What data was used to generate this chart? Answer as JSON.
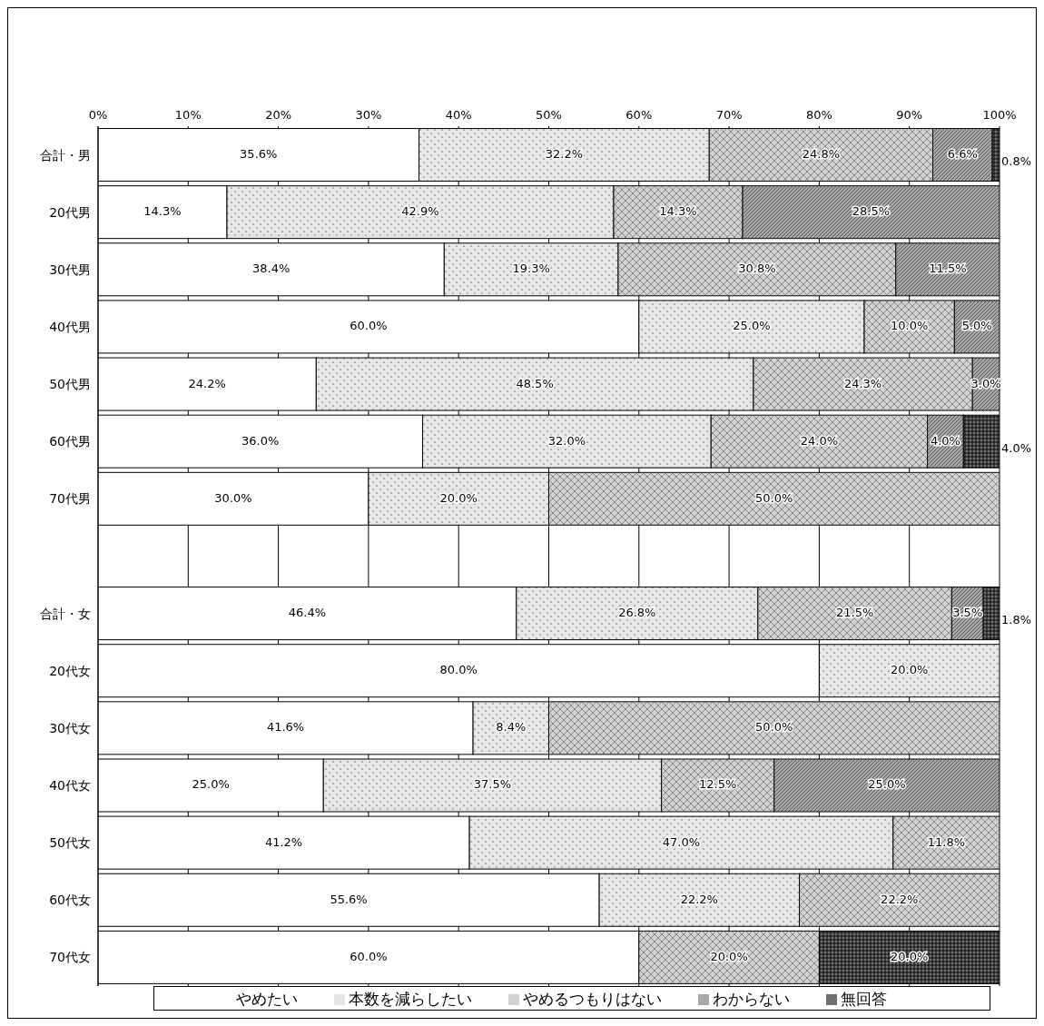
{
  "chart_data": {
    "type": "bar",
    "orientation": "horizontal",
    "stacked": true,
    "categories": [
      "合計・男",
      "20代男",
      "30代男",
      "40代男",
      "50代男",
      "60代男",
      "70代男",
      null,
      "合計・女",
      "20代女",
      "30代女",
      "40代女",
      "50代女",
      "60代女",
      "70代女"
    ],
    "series": [
      {
        "name": "やめたい",
        "color": "#ffffff",
        "values": [
          35.6,
          14.3,
          38.4,
          60.0,
          24.2,
          36.0,
          30.0,
          null,
          46.4,
          80.0,
          41.6,
          25.0,
          41.2,
          55.6,
          60.0
        ],
        "value_labels": [
          "35.6%",
          "14.3%",
          "38.4%",
          "60.0%",
          "24.2%",
          "36.0%",
          "30.0%",
          null,
          "46.4%",
          "80.0%",
          "41.6%",
          "25.0%",
          "41.2%",
          "55.6%",
          "60.0%"
        ]
      },
      {
        "name": "本数を減らしたい",
        "color": "#e6e6e6",
        "values": [
          32.2,
          42.9,
          19.3,
          25.0,
          48.5,
          32.0,
          20.0,
          null,
          26.8,
          20.0,
          8.4,
          37.5,
          47.0,
          22.2,
          null
        ],
        "value_labels": [
          "32.2%",
          "42.9%",
          "19.3%",
          "25.0%",
          "48.5%",
          "32.0%",
          "20.0%",
          null,
          "26.8%",
          "20.0%",
          "8.4%",
          "37.5%",
          "47.0%",
          "22.2%",
          null
        ]
      },
      {
        "name": "やめるつもりはない",
        "color": "#d2d2d2",
        "values": [
          24.8,
          14.3,
          30.8,
          10.0,
          24.3,
          24.0,
          50.0,
          null,
          21.5,
          null,
          50.0,
          12.5,
          11.8,
          22.2,
          20.0
        ],
        "value_labels": [
          "24.8%",
          "14.3%",
          "30.8%",
          "10.0%",
          "24.3%",
          "24.0%",
          "50.0%",
          null,
          "21.5%",
          null,
          "50.0%",
          "12.5%",
          "11.8%",
          "22.2%",
          "20.0%"
        ]
      },
      {
        "name": "わからない",
        "color": "#a8a8a8",
        "values": [
          6.6,
          28.5,
          11.5,
          5.0,
          3.0,
          4.0,
          null,
          null,
          3.5,
          null,
          null,
          25.0,
          null,
          null,
          null
        ],
        "value_labels": [
          "6.6%",
          "28.5%",
          "11.5%",
          "5.0%",
          "3.0%",
          "4.0%",
          null,
          null,
          "3.5%",
          null,
          null,
          "25.0%",
          null,
          null,
          null
        ]
      },
      {
        "name": "無回答",
        "color": "#707070",
        "values": [
          0.8,
          null,
          null,
          null,
          null,
          4.0,
          null,
          null,
          1.8,
          null,
          null,
          null,
          null,
          null,
          20.0
        ],
        "value_labels": [
          "0.8%",
          null,
          null,
          null,
          null,
          "4.0%",
          null,
          null,
          "1.8%",
          null,
          null,
          null,
          null,
          null,
          "20.0%"
        ]
      }
    ],
    "xlim": [
      0,
      100
    ],
    "xticks": [
      {
        "value": 0,
        "label": "0%"
      },
      {
        "value": 10,
        "label": "10%"
      },
      {
        "value": 20,
        "label": "20%"
      },
      {
        "value": 30,
        "label": "30%"
      },
      {
        "value": 40,
        "label": "40%"
      },
      {
        "value": 50,
        "label": "50%"
      },
      {
        "value": 60,
        "label": "60%"
      },
      {
        "value": 70,
        "label": "70%"
      },
      {
        "value": 80,
        "label": "80%"
      },
      {
        "value": 90,
        "label": "90%"
      },
      {
        "value": 100,
        "label": "100%"
      }
    ],
    "grid": "x",
    "legend": "bottom"
  }
}
